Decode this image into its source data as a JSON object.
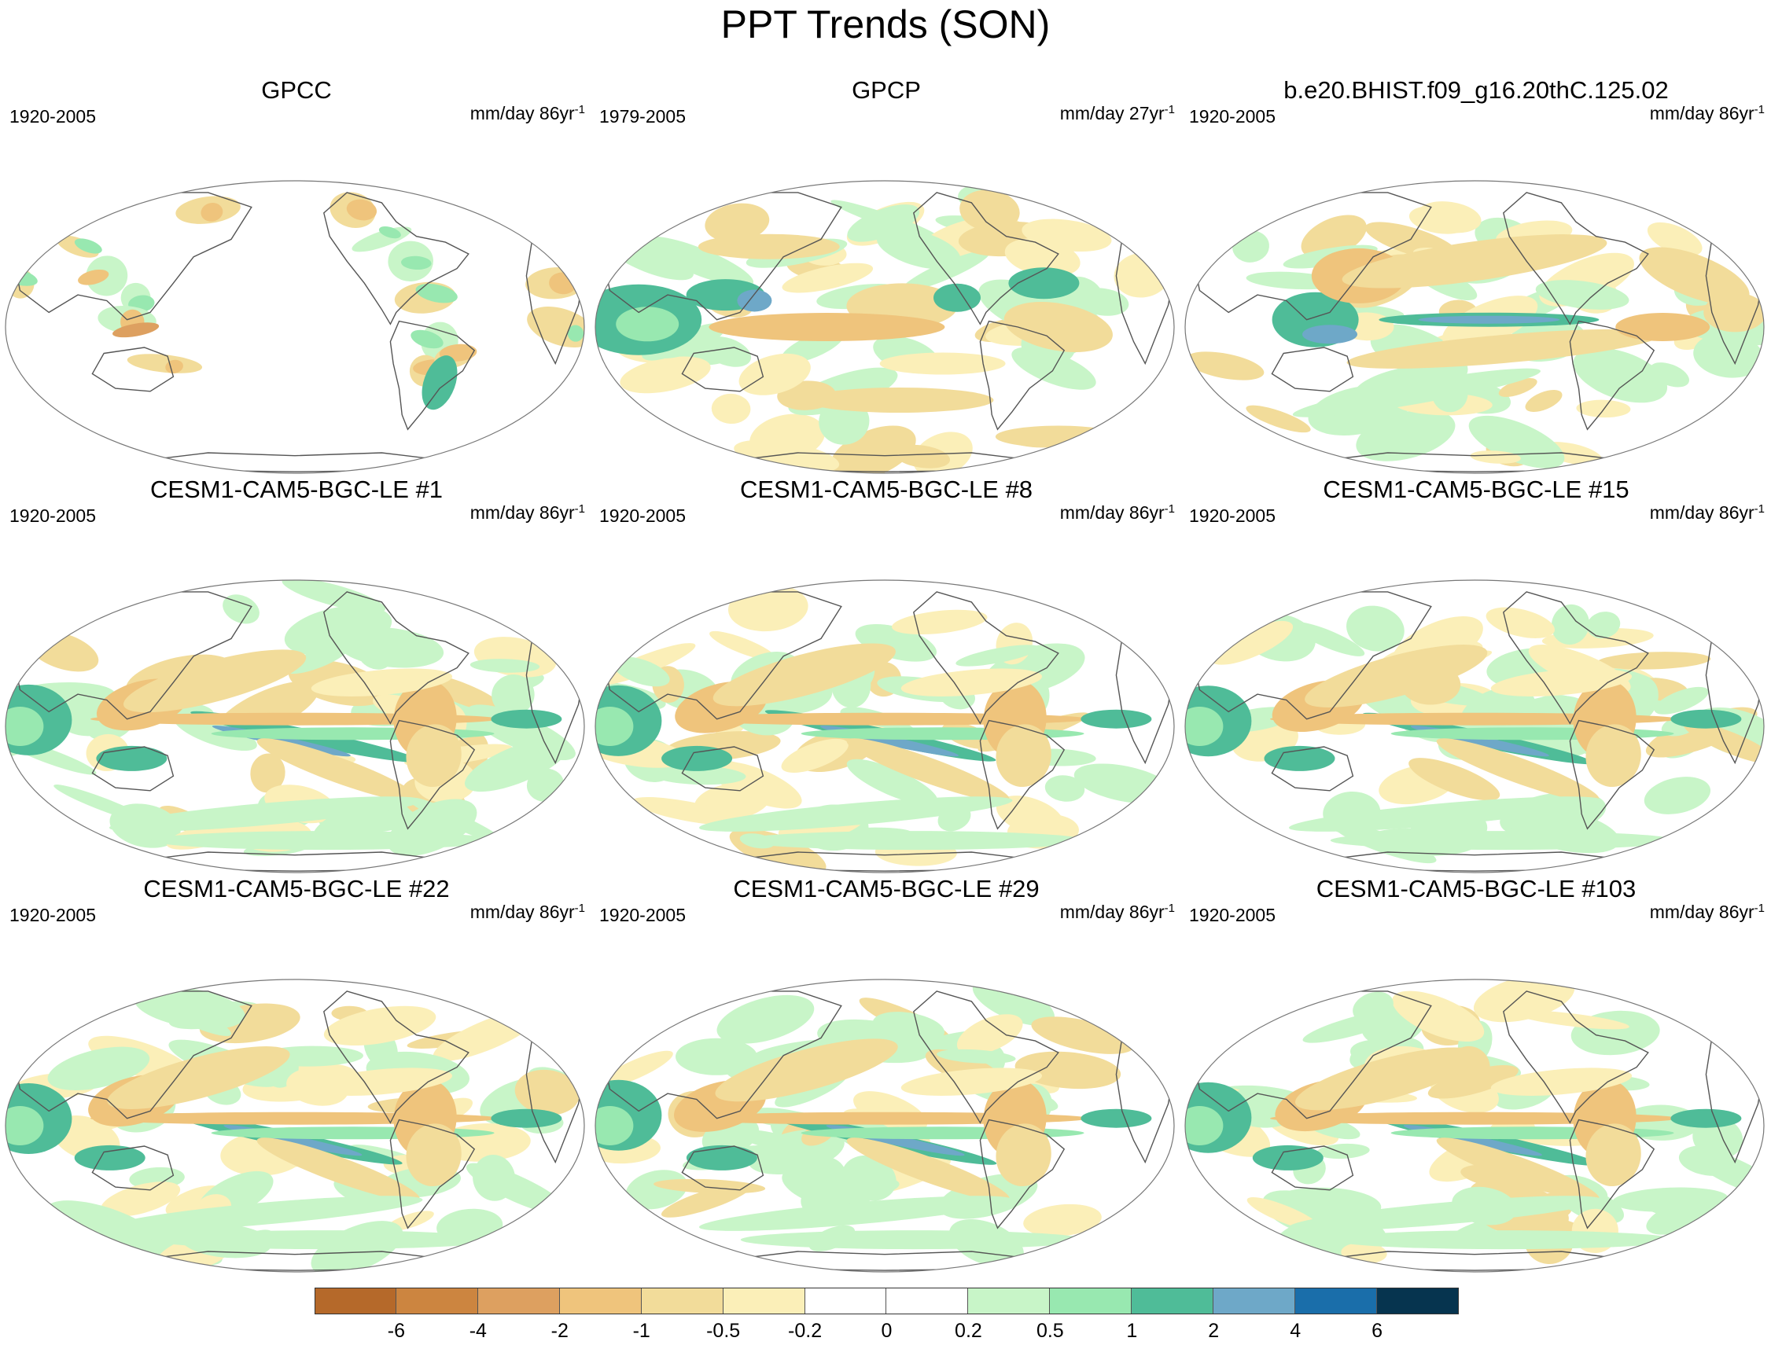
{
  "figure": {
    "title": "PPT Trends (SON)"
  },
  "panels": [
    {
      "title": "GPCC",
      "period": "1920-2005",
      "units": "mm/day 86yr",
      "units_exp": "-1"
    },
    {
      "title": "GPCP",
      "period": "1979-2005",
      "units": "mm/day 27yr",
      "units_exp": "-1"
    },
    {
      "title": "b.e20.BHIST.f09_g16.20thC.125.02",
      "period": "1920-2005",
      "units": "mm/day 86yr",
      "units_exp": "-1"
    },
    {
      "title": "CESM1-CAM5-BGC-LE #1",
      "period": "1920-2005",
      "units": "mm/day 86yr",
      "units_exp": "-1"
    },
    {
      "title": "CESM1-CAM5-BGC-LE #8",
      "period": "1920-2005",
      "units": "mm/day 86yr",
      "units_exp": "-1"
    },
    {
      "title": "CESM1-CAM5-BGC-LE #15",
      "period": "1920-2005",
      "units": "mm/day 86yr",
      "units_exp": "-1"
    },
    {
      "title": "CESM1-CAM5-BGC-LE #22",
      "period": "1920-2005",
      "units": "mm/day 86yr",
      "units_exp": "-1"
    },
    {
      "title": "CESM1-CAM5-BGC-LE #29",
      "period": "1920-2005",
      "units": "mm/day 86yr",
      "units_exp": "-1"
    },
    {
      "title": "CESM1-CAM5-BGC-LE #103",
      "period": "1920-2005",
      "units": "mm/day 86yr",
      "units_exp": "-1"
    }
  ],
  "colorbar": {
    "labels": [
      "-6",
      "-4",
      "-2",
      "-1",
      "-0.5",
      "-0.2",
      "0",
      "0.2",
      "0.5",
      "1",
      "2",
      "4",
      "6"
    ],
    "colors": [
      "#b5692a",
      "#cc8540",
      "#dda060",
      "#efc47c",
      "#f2dc9a",
      "#fbefb8",
      "#ffffff",
      "#ffffff",
      "#c8f5c8",
      "#98e8b0",
      "#4fbc98",
      "#6ea8c8",
      "#1a6eaa",
      "#06344f"
    ]
  }
}
